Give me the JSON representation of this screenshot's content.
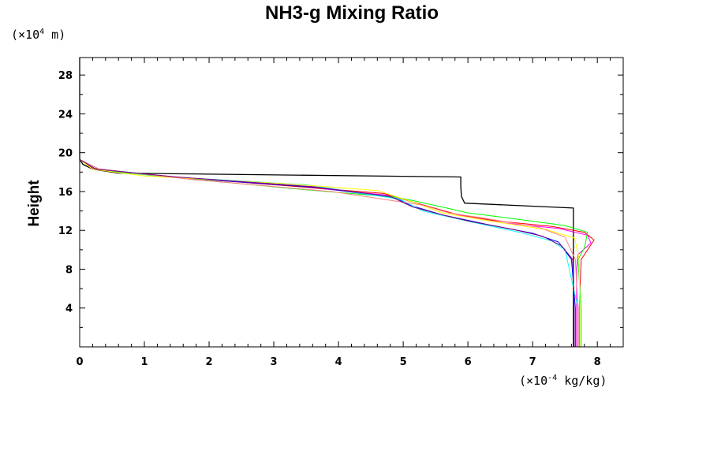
{
  "chart_data": {
    "type": "line",
    "title": "NH3-g Mixing Ratio",
    "ylabel": "Height",
    "xlabel": "",
    "y_units": {
      "prefix": "(×10",
      "exponent": "4",
      "suffix": " m)"
    },
    "x_units": {
      "prefix": "(×10",
      "exponent": "-4",
      "suffix": " kg/kg)"
    },
    "xlim": [
      0,
      8.4
    ],
    "ylim": [
      0,
      29.8
    ],
    "x_ticks": [
      0,
      1,
      2,
      3,
      4,
      5,
      6,
      7,
      8
    ],
    "y_ticks": [
      4,
      8,
      12,
      16,
      20,
      24,
      28
    ],
    "y_minor_step": 2,
    "x_minor_step": 0.2,
    "series": [
      {
        "color": "#000000",
        "x": [
          7.63,
          7.63,
          7.63,
          7.63,
          7.63,
          7.63,
          7.63,
          7.63,
          7.63,
          7.63,
          5.95,
          5.9,
          5.89,
          5.89,
          5.89,
          0.6,
          0.2,
          0.05,
          0.0,
          0.0
        ],
        "y": [
          0,
          2,
          4,
          6,
          8,
          10,
          12,
          13,
          14.0,
          14.3,
          14.8,
          15.5,
          16.5,
          17.3,
          17.5,
          17.9,
          18.3,
          18.8,
          19.3,
          29.8
        ]
      },
      {
        "color": "#ff00ff",
        "x": [
          7.68,
          7.68,
          7.68,
          7.7,
          7.9,
          7.85,
          7.4,
          6.5,
          5.9,
          5.1,
          4.8,
          3.4,
          1.2,
          0.2,
          0.0,
          0.0
        ],
        "y": [
          0,
          4,
          8,
          9.5,
          10.7,
          11.5,
          12.2,
          12.8,
          13.5,
          15.0,
          15.6,
          16.5,
          17.6,
          18.3,
          19.3,
          29.8
        ]
      },
      {
        "color": "#ff0000",
        "x": [
          7.72,
          7.72,
          7.75,
          7.95,
          7.8,
          7.3,
          6.4,
          5.8,
          5.0,
          4.7,
          3.2,
          1.1,
          0.2,
          0.0,
          0.0
        ],
        "y": [
          0,
          4,
          9,
          11.0,
          11.8,
          12.4,
          13.0,
          13.7,
          15.2,
          15.8,
          16.6,
          17.7,
          18.4,
          19.3,
          29.8
        ]
      },
      {
        "color": "#00ff00",
        "x": [
          7.75,
          7.75,
          7.7,
          7.8,
          7.85,
          7.5,
          6.7,
          6.0,
          5.2,
          4.9,
          3.3,
          1.2,
          0.2,
          0.0,
          0.0
        ],
        "y": [
          0,
          4,
          9,
          10.2,
          11.8,
          12.5,
          13.2,
          13.8,
          15.0,
          15.4,
          16.3,
          17.6,
          18.3,
          19.3,
          29.8
        ]
      },
      {
        "color": "#0000ff",
        "x": [
          7.66,
          7.66,
          7.6,
          7.4,
          7.0,
          6.3,
          5.6,
          5.1,
          4.9,
          3.7,
          1.6,
          0.3,
          0.0,
          0.0
        ],
        "y": [
          0,
          4,
          9,
          10.8,
          11.7,
          12.6,
          13.6,
          14.6,
          15.3,
          16.4,
          17.4,
          18.3,
          19.3,
          29.8
        ]
      },
      {
        "color": "#00ffff",
        "x": [
          7.7,
          7.7,
          7.5,
          7.3,
          6.8,
          6.1,
          5.3,
          4.95,
          3.5,
          1.4,
          0.25,
          0.0,
          0.0
        ],
        "y": [
          0,
          4,
          10,
          10.9,
          11.8,
          12.8,
          14.0,
          15.2,
          16.7,
          17.5,
          18.3,
          19.3,
          29.8
        ]
      },
      {
        "color": "#ffff00",
        "x": [
          7.73,
          7.73,
          7.72,
          7.65,
          7.2,
          6.4,
          5.6,
          5.2,
          4.6,
          3.2,
          1.0,
          0.2,
          0.0,
          0.0
        ],
        "y": [
          0,
          4,
          9,
          11.2,
          12.1,
          12.9,
          13.8,
          14.8,
          16.1,
          16.8,
          17.6,
          18.3,
          19.3,
          29.8
        ]
      },
      {
        "color": "#ff8080",
        "x": [
          7.7,
          7.7,
          7.66,
          7.5,
          7.1,
          6.3,
          5.7,
          5.3,
          3.9,
          1.8,
          0.3,
          0.0,
          0.0
        ],
        "y": [
          0,
          4,
          9,
          11.3,
          12.3,
          13.2,
          13.8,
          14.6,
          16.0,
          17.2,
          18.3,
          19.3,
          29.8
        ]
      },
      {
        "color": "#7f007f",
        "x": [
          7.64,
          7.64,
          7.62,
          7.45,
          7.15,
          6.7,
          6.05,
          5.6,
          5.15,
          4.8,
          3.6,
          1.5,
          0.25,
          0.0,
          0.0
        ],
        "y": [
          0,
          4,
          9,
          10.4,
          11.4,
          12.1,
          12.9,
          13.6,
          14.4,
          15.5,
          16.5,
          17.5,
          18.3,
          19.3,
          29.8
        ]
      }
    ]
  }
}
